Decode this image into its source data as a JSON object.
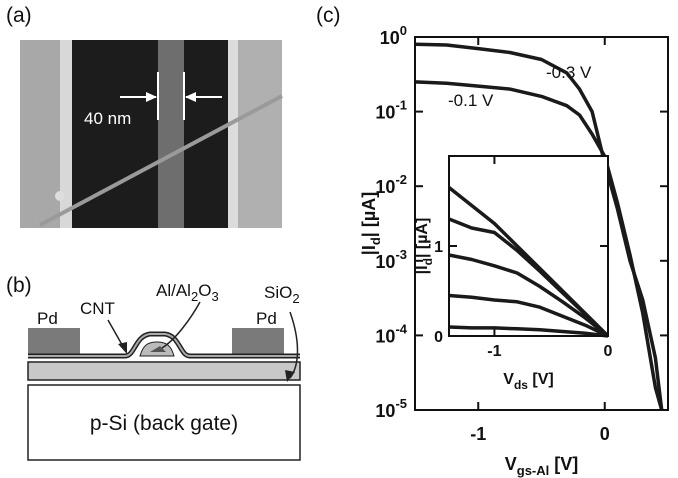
{
  "panel_a": {
    "label": "(a)",
    "scale_label": "40 nm"
  },
  "panel_b": {
    "label": "(b)",
    "pd_left": "Pd",
    "pd_right": "Pd",
    "cnt": "CNT",
    "gate_stack": [
      "Al/Al",
      "2",
      "O",
      "3"
    ],
    "oxide": [
      "SiO",
      "2"
    ],
    "substrate": "p-Si (back gate)"
  },
  "panel_c": {
    "label": "(c)"
  },
  "chart_data": [
    {
      "type": "line",
      "log_y": true,
      "xlabel": [
        "V",
        "gs-Al",
        " [V]"
      ],
      "ylabel": [
        "|I",
        "d",
        "| [µA]"
      ],
      "xlim": [
        -1.5,
        0.5
      ],
      "xticks": [
        -1,
        0
      ],
      "ylim": [
        1e-05,
        1
      ],
      "yticks": [
        {
          "value": 1e-05,
          "label": "10",
          "exponent": "-5"
        },
        {
          "value": 0.0001,
          "label": "10",
          "exponent": "-4"
        },
        {
          "value": 0.001,
          "label": "10",
          "exponent": "-3"
        },
        {
          "value": 0.01,
          "label": "10",
          "exponent": "-2"
        },
        {
          "value": 0.1,
          "label": "10",
          "exponent": "-1"
        },
        {
          "value": 1,
          "label": "10",
          "exponent": "0"
        }
      ],
      "x": [
        -1.5,
        -1.25,
        -1,
        -0.75,
        -0.5,
        -0.3,
        -0.2,
        -0.1,
        0,
        0.1,
        0.2,
        0.3,
        0.4,
        0.45
      ],
      "series": [
        {
          "name": "-0.3 V",
          "color": "#1a1a1a",
          "values": [
            0.8,
            0.78,
            0.7,
            0.62,
            0.5,
            0.33,
            0.2,
            0.1,
            0.02,
            0.005,
            0.001,
            0.0003,
            5e-05,
            1e-05
          ]
        },
        {
          "name": "-0.1 V",
          "color": "#1a1a1a",
          "values": [
            0.25,
            0.24,
            0.22,
            0.2,
            0.16,
            0.12,
            0.09,
            0.05,
            0.025,
            0.006,
            0.0012,
            0.0002,
            2e-05,
            1e-05
          ]
        }
      ]
    },
    {
      "type": "line",
      "log_y": false,
      "xlabel": [
        "V",
        "ds",
        " [V]"
      ],
      "ylabel": [
        "|I",
        "d",
        "| [µA]"
      ],
      "xlim": [
        -1.4,
        0
      ],
      "xticks": [
        -1,
        0
      ],
      "ylim": [
        0,
        2
      ],
      "yticks": [
        0,
        1
      ],
      "x": [
        -1.4,
        -1.2,
        -1,
        -0.8,
        -0.6,
        -0.4,
        -0.2,
        0
      ],
      "series": [
        {
          "color": "#1a1a1a",
          "values": [
            1.65,
            1.45,
            1.25,
            1.0,
            0.75,
            0.5,
            0.25,
            0
          ]
        },
        {
          "color": "#1a1a1a",
          "values": [
            1.3,
            1.2,
            1.15,
            0.95,
            0.72,
            0.48,
            0.24,
            0
          ]
        },
        {
          "color": "#1a1a1a",
          "values": [
            0.9,
            0.85,
            0.78,
            0.7,
            0.55,
            0.38,
            0.2,
            0
          ]
        },
        {
          "color": "#1a1a1a",
          "values": [
            0.45,
            0.43,
            0.4,
            0.38,
            0.32,
            0.22,
            0.12,
            0
          ]
        },
        {
          "color": "#1a1a1a",
          "values": [
            0.1,
            0.09,
            0.09,
            0.08,
            0.07,
            0.05,
            0.03,
            0
          ]
        }
      ]
    }
  ]
}
